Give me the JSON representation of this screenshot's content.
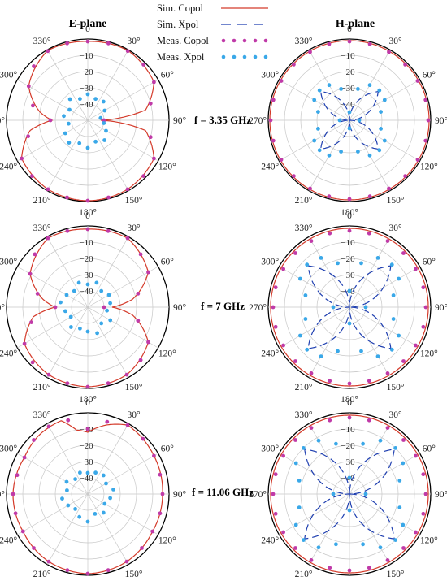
{
  "figure": {
    "titles": {
      "left": "E-plane",
      "right": "H-plane"
    },
    "legend": [
      {
        "label": "Sim. Copol",
        "style": "solid",
        "color": "#d43a2a"
      },
      {
        "label": "Sim. Xpol",
        "style": "dashed",
        "color": "#1f3fb0"
      },
      {
        "label": "Meas. Copol",
        "style": "dots",
        "color": "#c03aa8"
      },
      {
        "label": "Meas. Xpol",
        "style": "dots",
        "color": "#3aa8e8"
      }
    ],
    "rows": [
      {
        "freq_label": "f = 3.35 GHz"
      },
      {
        "freq_label": "f = 7 GHz"
      },
      {
        "freq_label": "f = 11.06 GHz"
      }
    ],
    "angle_labels": [
      "0",
      "330°",
      "300°",
      "270°",
      "240°",
      "210°",
      "180°",
      "150°",
      "120°",
      "90°",
      "60°",
      "30°"
    ],
    "radial_labels": [
      "0",
      "−10",
      "−20",
      "−30",
      "−40"
    ]
  },
  "chart_data": [
    {
      "type": "polar",
      "panel": "E-plane",
      "freq": "f = 3.35 GHz",
      "r_range_dB": [
        -50,
        0
      ],
      "theta_ticks_deg": [
        0,
        30,
        60,
        90,
        120,
        150,
        180,
        210,
        240,
        270,
        300,
        330
      ],
      "r_ticks_dB": [
        0,
        -10,
        -20,
        -30,
        -40
      ],
      "grid": true,
      "series": [
        {
          "name": "Sim. Copol",
          "theta_deg": [
            0,
            30,
            60,
            80,
            90,
            100,
            120,
            150,
            180,
            210,
            240,
            260,
            270,
            280,
            300,
            330,
            360
          ],
          "r_dB": [
            -1.5,
            -0.5,
            -8,
            -20,
            -28,
            -14,
            -3,
            -1,
            -0.5,
            -1,
            -3,
            -14,
            -42,
            -14,
            -3,
            -0.5,
            -1.5
          ]
        },
        {
          "name": "Meas. Copol",
          "theta_deg": [
            0,
            15,
            30,
            45,
            60,
            75,
            90,
            105,
            120,
            135,
            150,
            165,
            180,
            195,
            210,
            225,
            240,
            255,
            270,
            285,
            300,
            315,
            330,
            345
          ],
          "r_dB": [
            -1.5,
            -1,
            -0.8,
            -3,
            -8,
            -15,
            -27,
            -12,
            -3,
            -1.5,
            -1,
            -0.8,
            -0.5,
            -0.8,
            -1,
            -1.5,
            -3,
            -10,
            -40,
            -10,
            -3,
            -1.5,
            -0.8,
            -1
          ]
        },
        {
          "name": "Meas. Xpol",
          "theta_deg": [
            0,
            20,
            40,
            60,
            80,
            100,
            120,
            140,
            160,
            180,
            200,
            220,
            240,
            260,
            280,
            300,
            320,
            340
          ],
          "r_dB": [
            -34,
            -36,
            -33,
            -37,
            -35,
            -38,
            -34,
            -32,
            -35,
            -33,
            -36,
            -34,
            -37,
            -40,
            -42,
            -38,
            -35,
            -36
          ]
        }
      ]
    },
    {
      "type": "polar",
      "panel": "H-plane",
      "freq": "f = 3.35 GHz",
      "r_range_dB": [
        -50,
        0
      ],
      "theta_ticks_deg": [
        0,
        30,
        60,
        90,
        120,
        150,
        180,
        210,
        240,
        270,
        300,
        330
      ],
      "r_ticks_dB": [
        0,
        -10,
        -20,
        -30,
        -40
      ],
      "grid": true,
      "series": [
        {
          "name": "Sim. Copol",
          "theta_deg": [
            0,
            90,
            180,
            270,
            360
          ],
          "r_dB": [
            -1,
            -1,
            -1,
            -1,
            -1
          ]
        },
        {
          "name": "Sim. Xpol",
          "theta_deg": [
            0,
            45,
            90,
            135,
            180,
            225,
            270,
            315,
            360
          ],
          "r_dB": [
            -50,
            -25,
            -50,
            -25,
            -50,
            -25,
            -50,
            -25,
            -50
          ]
        },
        {
          "name": "Meas. Copol",
          "theta_deg": [
            0,
            15,
            30,
            45,
            60,
            75,
            90,
            105,
            120,
            135,
            150,
            165,
            180,
            195,
            210,
            225,
            240,
            255,
            270,
            285,
            300,
            315,
            330,
            345
          ],
          "r_dB": [
            -1.5,
            -1.5,
            -1.5,
            -1.5,
            -1.5,
            -1.5,
            -1.5,
            -1.5,
            -1.5,
            -1.5,
            -1.5,
            -1.5,
            -1.5,
            -1.5,
            -1.5,
            -1.5,
            -1.5,
            -1.5,
            -1.5,
            -1.5,
            -1.5,
            -1.5,
            -1.5,
            -1.5
          ]
        },
        {
          "name": "Meas. Xpol",
          "theta_deg": [
            0,
            15,
            30,
            45,
            60,
            75,
            90,
            105,
            120,
            135,
            150,
            165,
            180,
            195,
            210,
            225,
            240,
            255,
            270,
            285,
            300,
            315,
            330,
            345
          ],
          "r_dB": [
            -45,
            -30,
            -25,
            -24,
            -25,
            -30,
            -44,
            -30,
            -25,
            -24,
            -25,
            -30,
            -45,
            -30,
            -25,
            -24,
            -25,
            -30,
            -44,
            -30,
            -25,
            -24,
            -25,
            -30
          ]
        }
      ]
    },
    {
      "type": "polar",
      "panel": "E-plane",
      "freq": "f = 7 GHz",
      "r_range_dB": [
        -50,
        0
      ],
      "theta_ticks_deg": [
        0,
        30,
        60,
        90,
        120,
        150,
        180,
        210,
        240,
        270,
        300,
        330
      ],
      "r_ticks_dB": [
        0,
        -10,
        -20,
        -30,
        -40
      ],
      "grid": true,
      "series": [
        {
          "name": "Sim. Copol",
          "theta_deg": [
            0,
            30,
            60,
            80,
            90,
            100,
            120,
            150,
            180,
            210,
            240,
            260,
            270,
            280,
            300,
            330,
            360
          ],
          "r_dB": [
            -2,
            -1,
            -9,
            -22,
            -30,
            -16,
            -5,
            -2,
            -1,
            -2,
            -7,
            -22,
            -35,
            -22,
            -7,
            -1,
            -2
          ]
        },
        {
          "name": "Meas. Copol",
          "theta_deg": [
            0,
            15,
            30,
            45,
            60,
            75,
            90,
            105,
            120,
            135,
            150,
            165,
            180,
            195,
            210,
            225,
            240,
            255,
            270,
            285,
            300,
            315,
            330,
            345
          ],
          "r_dB": [
            -2,
            -1.5,
            -1,
            -4,
            -9,
            -18,
            -30,
            -14,
            -5,
            -2,
            -2,
            -1.5,
            -1,
            -1.5,
            -2,
            -4,
            -7,
            -18,
            -40,
            -18,
            -7,
            -4,
            -1,
            -1.5
          ]
        },
        {
          "name": "Meas. Xpol",
          "theta_deg": [
            0,
            20,
            40,
            60,
            80,
            100,
            120,
            140,
            160,
            180,
            200,
            220,
            240,
            260,
            280,
            300,
            320,
            340
          ],
          "r_dB": [
            -36,
            -34,
            -37,
            -35,
            -33,
            -36,
            -38,
            -34,
            -36,
            -35,
            -33,
            -37,
            -34,
            -38,
            -36,
            -35,
            -37,
            -34
          ]
        }
      ]
    },
    {
      "type": "polar",
      "panel": "H-plane",
      "freq": "f = 7 GHz",
      "r_range_dB": [
        -50,
        0
      ],
      "theta_ticks_deg": [
        0,
        30,
        60,
        90,
        120,
        150,
        180,
        210,
        240,
        270,
        300,
        330
      ],
      "r_ticks_dB": [
        0,
        -10,
        -20,
        -30,
        -40
      ],
      "grid": true,
      "series": [
        {
          "name": "Sim. Copol",
          "theta_deg": [
            0,
            90,
            180,
            270,
            360
          ],
          "r_dB": [
            -1.5,
            -1.5,
            -1.5,
            -1.5,
            -1.5
          ]
        },
        {
          "name": "Sim. Xpol",
          "theta_deg": [
            0,
            45,
            90,
            135,
            180,
            225,
            270,
            315,
            360
          ],
          "r_dB": [
            -50,
            -14,
            -50,
            -14,
            -50,
            -14,
            -50,
            -14,
            -50
          ]
        },
        {
          "name": "Meas. Copol",
          "theta_deg": [
            0,
            15,
            30,
            45,
            60,
            75,
            90,
            105,
            120,
            135,
            150,
            165,
            180,
            195,
            210,
            225,
            240,
            255,
            270,
            285,
            300,
            315,
            330,
            345
          ],
          "r_dB": [
            -3,
            -3,
            -3,
            -3,
            -3,
            -3,
            -3,
            -3,
            -3,
            -3,
            -3,
            -3,
            -3,
            -3,
            -3,
            -3,
            -3,
            -3,
            -3,
            -3,
            -3,
            -3,
            -3,
            -3
          ]
        },
        {
          "name": "Meas. Xpol",
          "theta_deg": [
            0,
            15,
            30,
            45,
            60,
            75,
            90,
            105,
            120,
            135,
            150,
            165,
            180,
            195,
            210,
            225,
            240,
            255,
            270,
            285,
            300,
            315,
            330,
            345
          ],
          "r_dB": [
            -40,
            -22,
            -15,
            -13,
            -15,
            -22,
            -40,
            -22,
            -15,
            -13,
            -15,
            -22,
            -40,
            -22,
            -15,
            -13,
            -15,
            -22,
            -40,
            -22,
            -15,
            -13,
            -15,
            -22
          ]
        }
      ]
    },
    {
      "type": "polar",
      "panel": "E-plane",
      "freq": "f = 11.06 GHz",
      "r_range_dB": [
        -50,
        0
      ],
      "theta_ticks_deg": [
        0,
        30,
        60,
        90,
        120,
        150,
        180,
        210,
        240,
        270,
        300,
        330
      ],
      "r_ticks_dB": [
        0,
        -10,
        -20,
        -30,
        -40
      ],
      "grid": true,
      "series": [
        {
          "name": "Sim. Copol",
          "theta_deg": [
            0,
            10,
            20,
            40,
            60,
            90,
            120,
            150,
            180,
            210,
            240,
            270,
            300,
            330,
            345,
            360
          ],
          "r_dB": [
            -12,
            -10,
            -2,
            -3,
            -5,
            -4,
            -4,
            -2,
            -1,
            -2,
            -4,
            -4,
            -3,
            -1,
            -6,
            -12
          ]
        },
        {
          "name": "Meas. Copol",
          "theta_deg": [
            0,
            15,
            30,
            45,
            60,
            75,
            90,
            105,
            120,
            135,
            150,
            165,
            180,
            195,
            210,
            225,
            240,
            255,
            270,
            285,
            300,
            315,
            330,
            345
          ],
          "r_dB": [
            -10,
            -3,
            -2,
            -3,
            -5,
            -5,
            -4,
            -4,
            -4,
            -3,
            -2,
            -1.5,
            -1,
            -1.5,
            -2,
            -3,
            -4,
            -4,
            -4,
            -4,
            -3,
            -2,
            -1,
            -4
          ]
        },
        {
          "name": "Meas. Xpol",
          "theta_deg": [
            0,
            20,
            40,
            60,
            80,
            100,
            120,
            140,
            160,
            180,
            200,
            220,
            240,
            260,
            280,
            300,
            320,
            340
          ],
          "r_dB": [
            -37,
            -36,
            -38,
            -35,
            -37,
            -34,
            -36,
            -38,
            -35,
            -33,
            -37,
            -35,
            -38,
            -36,
            -34,
            -37,
            -35,
            -36
          ]
        }
      ]
    },
    {
      "type": "polar",
      "panel": "H-plane",
      "freq": "f = 11.06 GHz",
      "r_range_dB": [
        -50,
        0
      ],
      "theta_ticks_deg": [
        0,
        30,
        60,
        90,
        120,
        150,
        180,
        210,
        240,
        270,
        300,
        330
      ],
      "r_ticks_dB": [
        0,
        -10,
        -20,
        -30,
        -40
      ],
      "grid": true,
      "series": [
        {
          "name": "Sim. Copol",
          "theta_deg": [
            0,
            90,
            180,
            270,
            360
          ],
          "r_dB": [
            -1.5,
            -1.5,
            -1.5,
            -1.5,
            -1.5
          ]
        },
        {
          "name": "Sim. Xpol",
          "theta_deg": [
            0,
            45,
            90,
            135,
            180,
            225,
            270,
            315,
            360
          ],
          "r_dB": [
            -50,
            -11,
            -50,
            -11,
            -50,
            -11,
            -50,
            -11,
            -50
          ]
        },
        {
          "name": "Meas. Copol",
          "theta_deg": [
            0,
            15,
            30,
            45,
            60,
            75,
            90,
            105,
            120,
            135,
            150,
            165,
            180,
            195,
            210,
            225,
            240,
            255,
            270,
            285,
            300,
            315,
            330,
            345
          ],
          "r_dB": [
            -3,
            -3,
            -3,
            -3,
            -3,
            -3,
            -3,
            -3,
            -3,
            -3,
            -3,
            -3,
            -3,
            -3,
            -3,
            -3,
            -3,
            -3,
            -3,
            -3,
            -3,
            -3,
            -3,
            -3
          ]
        },
        {
          "name": "Meas. Xpol",
          "theta_deg": [
            0,
            15,
            30,
            45,
            60,
            75,
            90,
            105,
            120,
            135,
            150,
            165,
            180,
            195,
            210,
            225,
            240,
            255,
            270,
            285,
            300,
            315,
            330,
            345
          ],
          "r_dB": [
            -40,
            -18,
            -12,
            -10,
            -12,
            -18,
            -40,
            -18,
            -12,
            -10,
            -12,
            -18,
            -40,
            -18,
            -12,
            -10,
            -12,
            -18,
            -40,
            -18,
            -12,
            -10,
            -12,
            -18
          ]
        }
      ]
    }
  ]
}
